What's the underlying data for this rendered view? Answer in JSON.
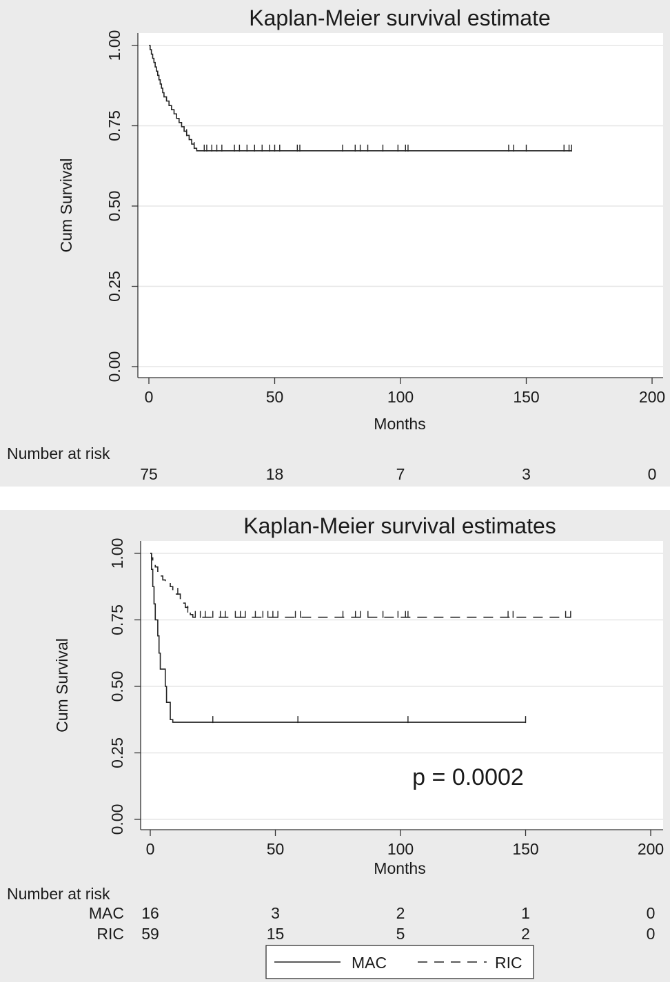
{
  "chart_data": [
    {
      "type": "line",
      "title": "Kaplan-Meier survival estimate",
      "xlabel": "Months",
      "ylabel": "Cum Survival",
      "xlim": [
        0,
        200
      ],
      "ylim": [
        0,
        1
      ],
      "x_ticks": [
        "0",
        "50",
        "100",
        "150",
        "200"
      ],
      "y_ticks": [
        "0.00",
        "0.25",
        "0.50",
        "0.75",
        "1.00"
      ],
      "grid": true,
      "series": [
        {
          "style": "solid",
          "steps": [
            [
              0,
              1.0
            ],
            [
              0.5,
              0.987
            ],
            [
              1,
              0.973
            ],
            [
              1.5,
              0.96
            ],
            [
              2,
              0.947
            ],
            [
              2.5,
              0.933
            ],
            [
              3,
              0.92
            ],
            [
              3.5,
              0.907
            ],
            [
              4,
              0.893
            ],
            [
              4.5,
              0.88
            ],
            [
              5,
              0.867
            ],
            [
              5.5,
              0.853
            ],
            [
              6,
              0.84
            ],
            [
              7,
              0.827
            ],
            [
              8,
              0.813
            ],
            [
              9,
              0.8
            ],
            [
              10,
              0.787
            ],
            [
              11,
              0.773
            ],
            [
              12,
              0.76
            ],
            [
              13,
              0.747
            ],
            [
              14,
              0.733
            ],
            [
              15,
              0.72
            ],
            [
              16,
              0.707
            ],
            [
              17,
              0.693
            ],
            [
              18,
              0.68
            ],
            [
              19,
              0.672
            ],
            [
              168,
              0.672
            ]
          ],
          "censored": [
            15,
            18,
            22,
            23,
            25,
            27,
            29,
            34,
            36,
            39,
            42,
            45,
            48,
            50,
            52,
            59,
            60,
            77,
            82,
            84,
            87,
            93,
            99,
            102,
            103,
            143,
            145,
            150,
            165,
            167,
            168
          ]
        }
      ],
      "risk_table": {
        "title": "Number at risk",
        "times": [
          "0",
          "50",
          "100",
          "150",
          "200"
        ],
        "rows": [
          {
            "label": "",
            "values": [
              "75",
              "18",
              "7",
              "3",
              "0"
            ]
          }
        ]
      }
    },
    {
      "type": "line",
      "title": "Kaplan-Meier survival estimates",
      "xlabel": "Months",
      "ylabel": "Cum Survival",
      "xlim": [
        0,
        200
      ],
      "ylim": [
        0,
        1
      ],
      "x_ticks": [
        "0",
        "50",
        "100",
        "150",
        "200"
      ],
      "y_ticks": [
        "0.00",
        "0.25",
        "0.50",
        "0.75",
        "1.00"
      ],
      "grid": true,
      "annotation": "p = 0.0002",
      "legend": {
        "position": "bottom"
      },
      "series": [
        {
          "name": "MAC",
          "style": "solid",
          "steps": [
            [
              0,
              1.0
            ],
            [
              0.5,
              0.94
            ],
            [
              1,
              0.875
            ],
            [
              1.5,
              0.81
            ],
            [
              2,
              0.75
            ],
            [
              3,
              0.69
            ],
            [
              3.5,
              0.625
            ],
            [
              4,
              0.565
            ],
            [
              6,
              0.5
            ],
            [
              6.5,
              0.44
            ],
            [
              8,
              0.375
            ],
            [
              9,
              0.365
            ],
            [
              150,
              0.365
            ]
          ],
          "censored": [
            25,
            59,
            103,
            150
          ]
        },
        {
          "name": "RIC",
          "style": "dashed",
          "steps": [
            [
              0,
              1.0
            ],
            [
              0.5,
              0.983
            ],
            [
              1,
              0.966
            ],
            [
              2,
              0.949
            ],
            [
              3,
              0.932
            ],
            [
              4,
              0.915
            ],
            [
              5,
              0.9
            ],
            [
              6,
              0.89
            ],
            [
              8,
              0.875
            ],
            [
              9,
              0.86
            ],
            [
              10,
              0.847
            ],
            [
              12,
              0.83
            ],
            [
              13,
              0.813
            ],
            [
              14,
              0.797
            ],
            [
              15,
              0.78
            ],
            [
              16,
              0.77
            ],
            [
              17,
              0.76
            ],
            [
              168,
              0.76
            ]
          ],
          "censored": [
            11,
            15,
            18,
            20,
            22,
            25,
            28,
            30,
            34,
            36,
            38,
            42,
            45,
            47,
            49,
            51,
            58,
            60,
            77,
            82,
            84,
            87,
            93,
            99,
            102,
            103,
            143,
            145,
            166,
            168
          ]
        }
      ],
      "risk_table": {
        "title": "Number at risk",
        "times": [
          "0",
          "50",
          "100",
          "150",
          "200"
        ],
        "rows": [
          {
            "label": "MAC",
            "values": [
              "16",
              "3",
              "2",
              "1",
              "0"
            ]
          },
          {
            "label": "RIC",
            "values": [
              "59",
              "15",
              "5",
              "2",
              "0"
            ]
          }
        ]
      }
    }
  ]
}
